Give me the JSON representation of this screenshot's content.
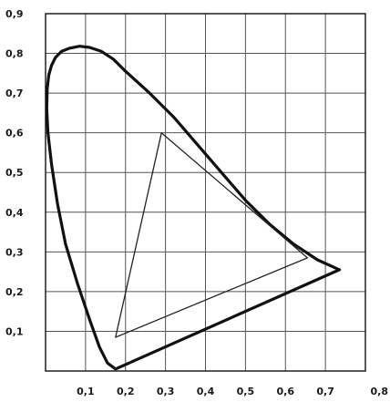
{
  "chart_data": {
    "type": "line",
    "title": "",
    "xlabel": "",
    "ylabel": "",
    "xlim": [
      0,
      0.8
    ],
    "ylim": [
      0,
      0.9
    ],
    "grid": true,
    "x_ticks": [
      "0,1",
      "0,2",
      "0,3",
      "0,4",
      "0,5",
      "0,6",
      "0,7",
      "0,8"
    ],
    "y_ticks": [
      "0,1",
      "0,2",
      "0,3",
      "0,4",
      "0,5",
      "0,6",
      "0,7",
      "0,8",
      "0,9"
    ],
    "series": [
      {
        "style": "thick",
        "color": "#111111",
        "closed": true,
        "x": [
          0.175,
          0.155,
          0.135,
          0.11,
          0.08,
          0.05,
          0.03,
          0.015,
          0.006,
          0.003,
          0.004,
          0.008,
          0.015,
          0.025,
          0.04,
          0.06,
          0.085,
          0.11,
          0.14,
          0.17,
          0.2,
          0.26,
          0.32,
          0.38,
          0.44,
          0.5,
          0.56,
          0.62,
          0.68,
          0.735,
          0.175
        ],
        "y": [
          0.005,
          0.02,
          0.06,
          0.13,
          0.22,
          0.32,
          0.42,
          0.52,
          0.6,
          0.66,
          0.71,
          0.745,
          0.77,
          0.79,
          0.805,
          0.813,
          0.818,
          0.815,
          0.805,
          0.785,
          0.755,
          0.7,
          0.64,
          0.57,
          0.5,
          0.43,
          0.37,
          0.32,
          0.28,
          0.255,
          0.005
        ]
      },
      {
        "style": "thin",
        "color": "#222222",
        "closed": true,
        "x": [
          0.29,
          0.655,
          0.175,
          0.29
        ],
        "y": [
          0.6,
          0.285,
          0.085,
          0.6
        ]
      }
    ]
  }
}
